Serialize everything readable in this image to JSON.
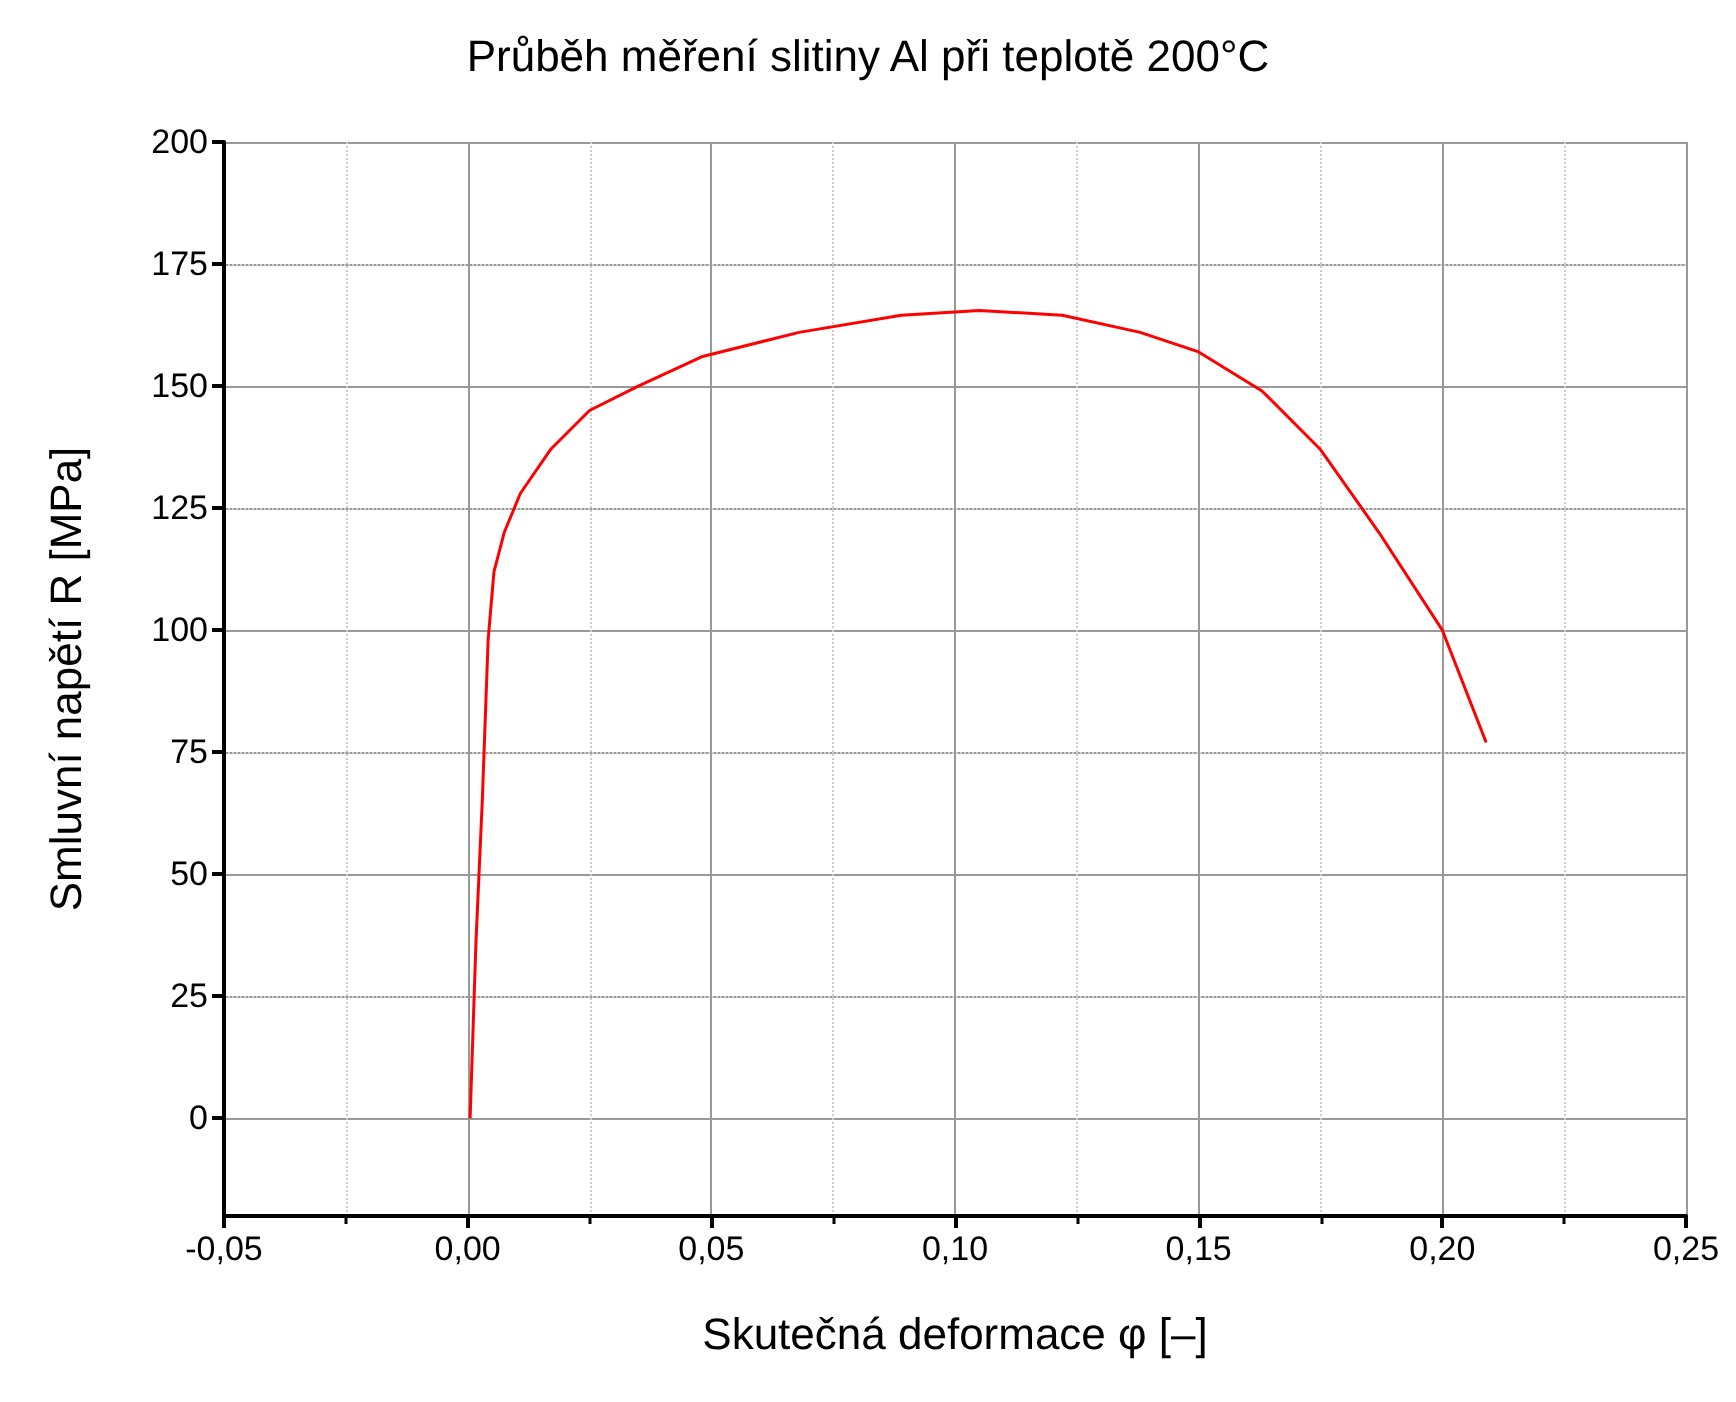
{
  "chart_data": {
    "type": "line",
    "title": "Průběh měření slitiny Al při teplotě 200°C",
    "xlabel": "Skutečná deformace φ [–]",
    "ylabel": "Smluvní napětí R [MPa]",
    "x": [
      0.0005,
      0.0017,
      0.003,
      0.0042,
      0.0054,
      0.0075,
      0.0108,
      0.017,
      0.025,
      0.035,
      0.048,
      0.068,
      0.089,
      0.105,
      0.122,
      0.138,
      0.15,
      0.163,
      0.175,
      0.187,
      0.2,
      0.209
    ],
    "series": [
      {
        "color": "#ff0000",
        "values": [
          0,
          36,
          65,
          98,
          112,
          120,
          128,
          137,
          145,
          150,
          156,
          161,
          164.5,
          165.5,
          164.5,
          161,
          157,
          149,
          137,
          120,
          100,
          77
        ]
      }
    ],
    "xlim": [
      -0.05,
      0.25
    ],
    "xticks": [
      {
        "value": -0.05,
        "label": "-0,05"
      },
      {
        "value": 0,
        "label": "0,00"
      },
      {
        "value": 0.05,
        "label": "0,05"
      },
      {
        "value": 0.1,
        "label": "0,10"
      },
      {
        "value": 0.15,
        "label": "0,15"
      },
      {
        "value": 0.2,
        "label": "0,20"
      },
      {
        "value": 0.25,
        "label": "0,25"
      }
    ],
    "ylim": [
      -20,
      200
    ],
    "yticks": [
      0,
      25,
      50,
      75,
      100,
      125,
      150,
      175,
      200
    ],
    "grid": true,
    "marker": "none",
    "line_style": "solid"
  }
}
